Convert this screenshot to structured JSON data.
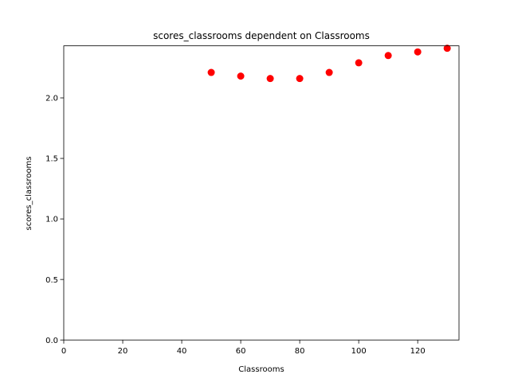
{
  "chart_data": {
    "type": "scatter",
    "title": "scores_classrooms dependent on Classrooms",
    "xlabel": "Classrooms",
    "ylabel": "scores_classrooms",
    "xlim": [
      0,
      134
    ],
    "ylim": [
      0.0,
      2.43
    ],
    "xticks": [
      0,
      20,
      40,
      60,
      80,
      100,
      120
    ],
    "yticks": [
      0.0,
      0.5,
      1.0,
      1.5,
      2.0
    ],
    "xtick_labels": [
      "0",
      "20",
      "40",
      "60",
      "80",
      "100",
      "120"
    ],
    "ytick_labels": [
      "0.0",
      "0.5",
      "1.0",
      "1.5",
      "2.0"
    ],
    "grid": false,
    "marker_color": "#ff0000",
    "series": [
      {
        "x": [
          50,
          60,
          70,
          80,
          90,
          100,
          110,
          120,
          130
        ],
        "y": [
          2.21,
          2.18,
          2.16,
          2.16,
          2.21,
          2.29,
          2.35,
          2.38,
          2.41
        ]
      }
    ]
  }
}
